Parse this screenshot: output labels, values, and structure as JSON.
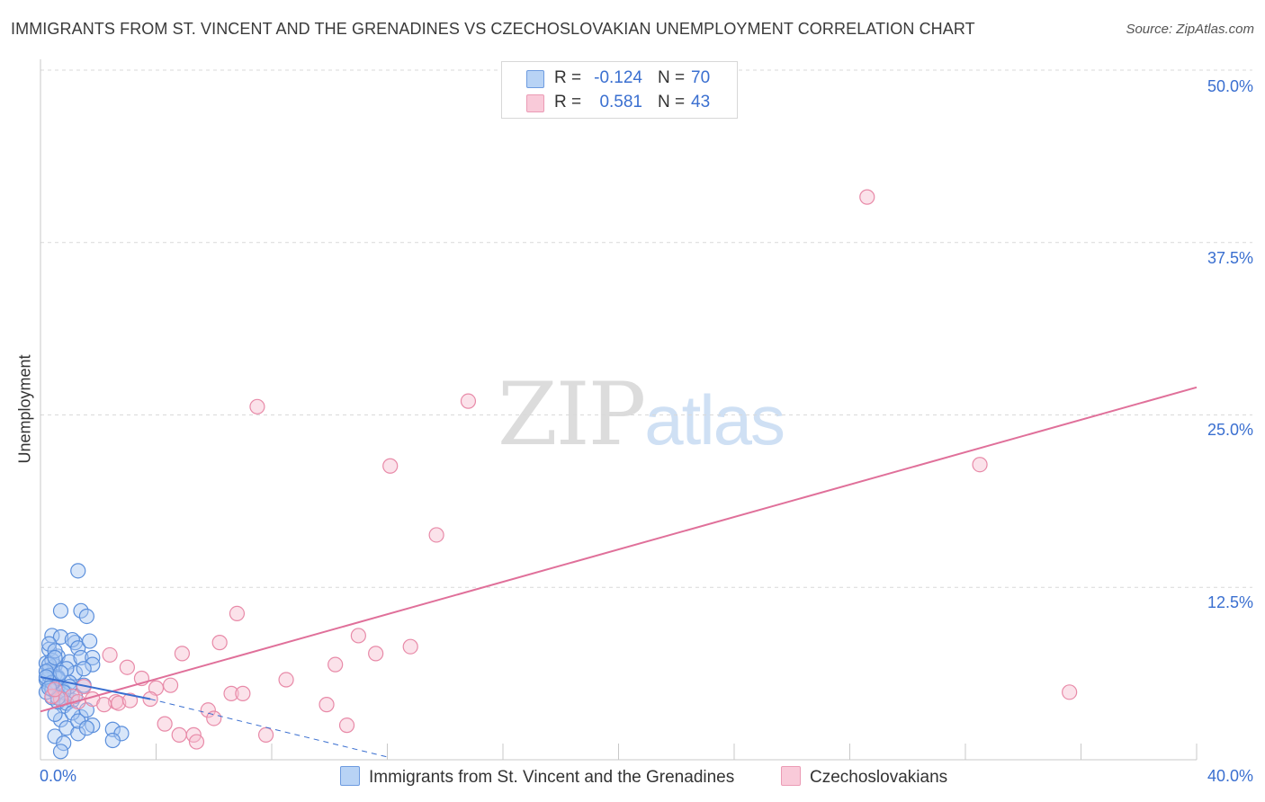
{
  "title": "IMMIGRANTS FROM ST. VINCENT AND THE GRENADINES VS CZECHOSLOVAKIAN UNEMPLOYMENT CORRELATION CHART",
  "source": "Source: ZipAtlas.com",
  "watermark": {
    "zip": "ZIP",
    "atlas": "atlas"
  },
  "legend": {
    "rows": [
      {
        "r_label": "R =",
        "r_value": "-0.124",
        "n_label": "N =",
        "n_value": "70"
      },
      {
        "r_label": "R =",
        "r_value": "0.581",
        "n_label": "N =",
        "n_value": "43"
      }
    ]
  },
  "colors": {
    "blue_fill": "#a9c8f2",
    "blue_stroke": "#5b8fdc",
    "blue_line": "#3a6fd0",
    "pink_fill": "#f6bfd0",
    "pink_stroke": "#e88aa8",
    "pink_line": "#e0709a",
    "grid": "#d9d9d9",
    "axis_text": "#3a6fd0"
  },
  "chart_data": {
    "type": "scatter",
    "title": "IMMIGRANTS FROM ST. VINCENT AND THE GRENADINES VS CZECHOSLOVAKIAN UNEMPLOYMENT CORRELATION CHART",
    "xlabel": "",
    "ylabel": "Unemployment",
    "xlim": [
      0,
      40
    ],
    "ylim": [
      0,
      50
    ],
    "x_tick_labels": [
      "0.0%",
      "40.0%"
    ],
    "y_ticks": [
      12.5,
      25.0,
      37.5,
      50.0
    ],
    "y_tick_labels": [
      "12.5%",
      "25.0%",
      "37.5%",
      "50.0%"
    ],
    "grid": true,
    "legend_position": "top-center",
    "series": [
      {
        "name": "Immigrants from St. Vincent and the Grenadines",
        "color": "#a9c8f2",
        "r": -0.124,
        "n": 70,
        "trend": {
          "x": [
            0,
            3.8
          ],
          "y": [
            6.0,
            4.4
          ]
        },
        "trend_extended": {
          "x": [
            3.8,
            12.0
          ],
          "y": [
            4.4,
            0.2
          ]
        },
        "points": [
          [
            0.3,
            5.5
          ],
          [
            0.5,
            6.2
          ],
          [
            0.2,
            7.0
          ],
          [
            0.4,
            4.5
          ],
          [
            0.6,
            7.5
          ],
          [
            0.3,
            8.0
          ],
          [
            0.5,
            6.8
          ],
          [
            0.8,
            5.0
          ],
          [
            0.2,
            5.8
          ],
          [
            0.4,
            7.2
          ],
          [
            0.3,
            6.5
          ],
          [
            0.6,
            5.3
          ],
          [
            0.9,
            4.8
          ],
          [
            0.4,
            9.0
          ],
          [
            0.7,
            8.9
          ],
          [
            0.3,
            8.4
          ],
          [
            0.5,
            7.9
          ],
          [
            1.0,
            7.1
          ],
          [
            0.6,
            6.0
          ],
          [
            0.2,
            4.9
          ],
          [
            1.2,
            6.3
          ],
          [
            1.5,
            5.4
          ],
          [
            1.1,
            4.3
          ],
          [
            0.8,
            3.9
          ],
          [
            1.4,
            3.1
          ],
          [
            0.7,
            2.9
          ],
          [
            0.9,
            2.3
          ],
          [
            1.3,
            1.9
          ],
          [
            0.5,
            1.7
          ],
          [
            0.8,
            1.2
          ],
          [
            0.7,
            0.6
          ],
          [
            0.5,
            3.3
          ],
          [
            1.6,
            3.6
          ],
          [
            1.8,
            2.5
          ],
          [
            1.2,
            4.6
          ],
          [
            1.0,
            5.6
          ],
          [
            0.4,
            5.1
          ],
          [
            0.6,
            4.2
          ],
          [
            0.3,
            6.9
          ],
          [
            0.9,
            6.6
          ],
          [
            1.3,
            13.7
          ],
          [
            0.7,
            10.8
          ],
          [
            1.4,
            10.8
          ],
          [
            1.6,
            10.4
          ],
          [
            1.2,
            8.5
          ],
          [
            1.1,
            8.7
          ],
          [
            1.3,
            8.1
          ],
          [
            1.7,
            8.6
          ],
          [
            1.4,
            7.4
          ],
          [
            1.8,
            7.4
          ],
          [
            1.8,
            6.9
          ],
          [
            1.5,
            6.6
          ],
          [
            1.0,
            5.3
          ],
          [
            0.8,
            4.9
          ],
          [
            0.6,
            5.9
          ],
          [
            0.3,
            6.1
          ],
          [
            0.2,
            6.4
          ],
          [
            0.5,
            7.4
          ],
          [
            0.9,
            4.1
          ],
          [
            1.1,
            3.4
          ],
          [
            1.3,
            2.8
          ],
          [
            1.6,
            2.3
          ],
          [
            2.5,
            2.2
          ],
          [
            2.8,
            1.9
          ],
          [
            2.5,
            1.4
          ],
          [
            0.4,
            5.6
          ],
          [
            0.2,
            6.0
          ],
          [
            0.6,
            4.5
          ],
          [
            0.3,
            5.2
          ],
          [
            0.7,
            6.3
          ]
        ]
      },
      {
        "name": "Czechoslovakians",
        "color": "#f6bfd0",
        "r": 0.581,
        "n": 43,
        "trend": {
          "x": [
            0,
            40
          ],
          "y": [
            3.5,
            27.0
          ]
        },
        "points": [
          [
            28.6,
            40.8
          ],
          [
            14.8,
            26.0
          ],
          [
            7.5,
            25.6
          ],
          [
            12.1,
            21.3
          ],
          [
            32.5,
            21.4
          ],
          [
            13.7,
            16.3
          ],
          [
            6.8,
            10.6
          ],
          [
            11.0,
            9.0
          ],
          [
            12.8,
            8.2
          ],
          [
            6.2,
            8.5
          ],
          [
            4.9,
            7.7
          ],
          [
            2.4,
            7.6
          ],
          [
            11.6,
            7.7
          ],
          [
            10.2,
            6.9
          ],
          [
            3.0,
            6.7
          ],
          [
            3.5,
            5.9
          ],
          [
            8.5,
            5.8
          ],
          [
            4.5,
            5.4
          ],
          [
            4.0,
            5.2
          ],
          [
            1.5,
            5.3
          ],
          [
            6.6,
            4.8
          ],
          [
            7.0,
            4.8
          ],
          [
            3.8,
            4.4
          ],
          [
            2.6,
            4.2
          ],
          [
            1.8,
            4.4
          ],
          [
            2.2,
            4.0
          ],
          [
            1.1,
            4.6
          ],
          [
            0.7,
            4.4
          ],
          [
            0.4,
            4.6
          ],
          [
            1.3,
            4.2
          ],
          [
            9.9,
            4.0
          ],
          [
            5.8,
            3.6
          ],
          [
            6.0,
            3.0
          ],
          [
            4.3,
            2.6
          ],
          [
            10.6,
            2.5
          ],
          [
            4.8,
            1.8
          ],
          [
            5.3,
            1.8
          ],
          [
            7.8,
            1.8
          ],
          [
            5.4,
            1.3
          ],
          [
            2.7,
            4.1
          ],
          [
            3.1,
            4.3
          ],
          [
            35.6,
            4.9
          ],
          [
            0.5,
            5.1
          ]
        ]
      }
    ]
  }
}
